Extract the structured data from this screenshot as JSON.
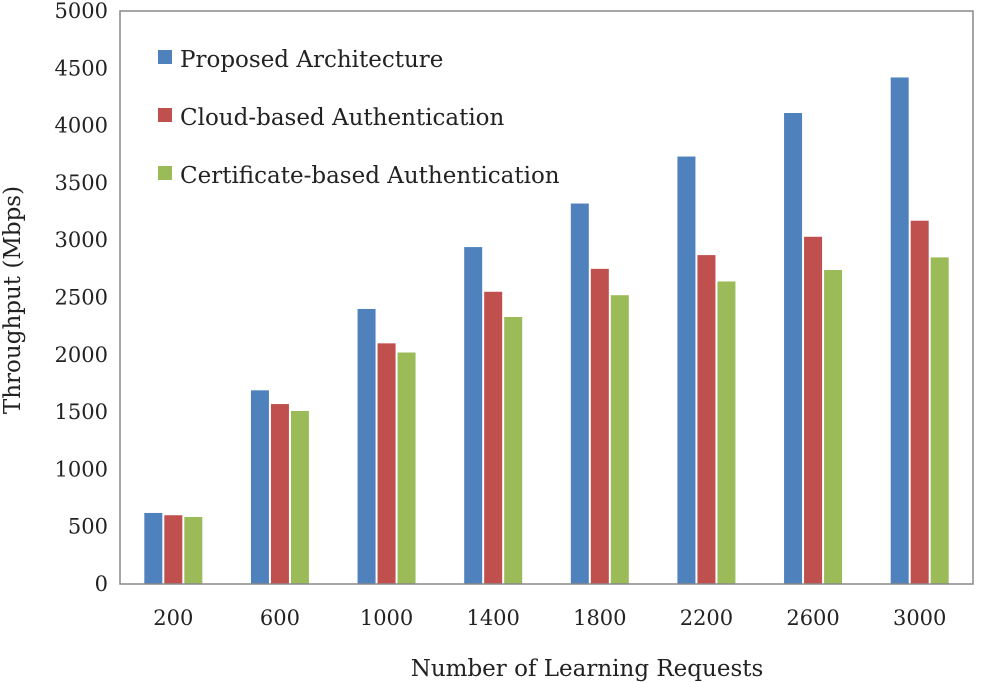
{
  "chart_data": {
    "type": "bar",
    "title": "",
    "xlabel": "Number of Learning Requests",
    "ylabel": "Throughput (Mbps)",
    "ylim": [
      0,
      5000
    ],
    "yticks": [
      0,
      500,
      1000,
      1500,
      2000,
      2500,
      3000,
      3500,
      4000,
      4500,
      5000
    ],
    "grid": false,
    "legend_position": "top-left",
    "categories": [
      "200",
      "600",
      "1000",
      "1400",
      "1800",
      "2200",
      "2600",
      "3000"
    ],
    "series": [
      {
        "name": "Proposed Architecture",
        "color": "#4f81bd",
        "values": [
          620,
          1690,
          2400,
          2940,
          3320,
          3730,
          4110,
          4420
        ]
      },
      {
        "name": "Cloud-based Authentication",
        "color": "#c0504d",
        "values": [
          600,
          1570,
          2100,
          2550,
          2750,
          2870,
          3030,
          3170
        ]
      },
      {
        "name": "Certificate-based Authentication",
        "color": "#9bbb59",
        "values": [
          585,
          1510,
          2020,
          2330,
          2520,
          2640,
          2740,
          2850
        ]
      }
    ]
  }
}
